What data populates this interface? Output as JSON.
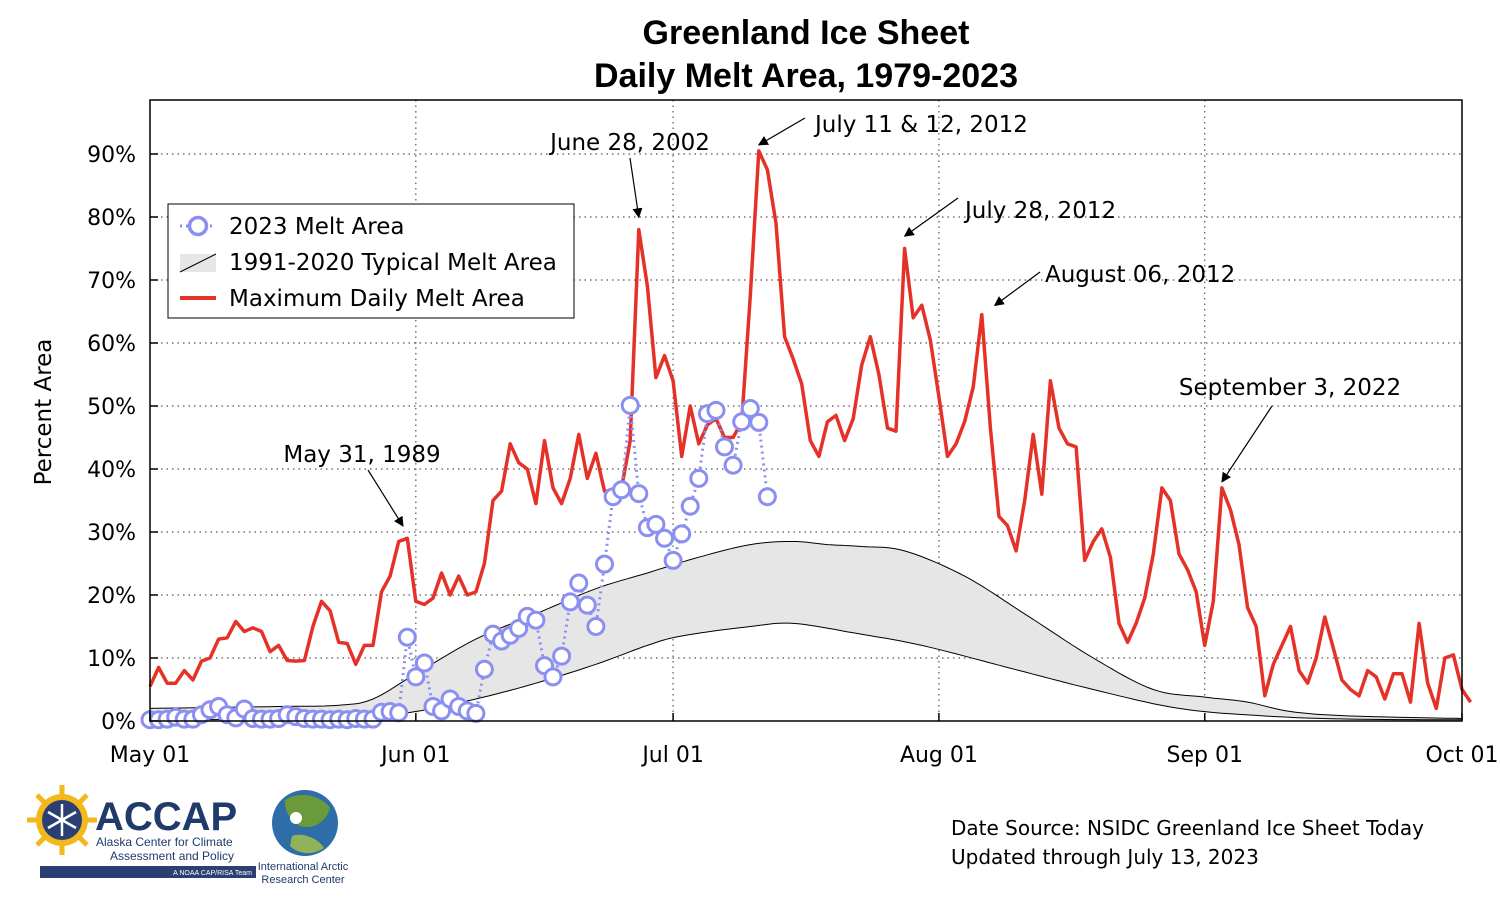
{
  "chart_data": {
    "type": "line",
    "title": [
      "Greenland Ice Sheet",
      "Daily Melt Area, 1979-2023"
    ],
    "ylabel": "Percent Area",
    "xlabel": "",
    "ylim": [
      0,
      100
    ],
    "yticks": [
      0,
      10,
      20,
      30,
      40,
      50,
      60,
      70,
      80,
      90
    ],
    "ytick_labels": [
      "0%",
      "10%",
      "20%",
      "30%",
      "40%",
      "50%",
      "60%",
      "70%",
      "80%",
      "90%"
    ],
    "x_start": "May 01",
    "x_end": "Oct 01",
    "xticks": [
      {
        "label": "May 01",
        "day": 0
      },
      {
        "label": "Jun 01",
        "day": 31
      },
      {
        "label": "Jul 01",
        "day": 61
      },
      {
        "label": "Aug 01",
        "day": 92
      },
      {
        "label": "Sep 01",
        "day": 123
      },
      {
        "label": "Oct 01",
        "day": 153
      }
    ],
    "grid": "dotted",
    "legend_position": "upper-left",
    "legend": [
      {
        "label": "2023 Melt Area",
        "color": "#8a8ff0",
        "style": "dotted line with open circles"
      },
      {
        "label": "1991-2020 Typical Melt Area",
        "color": "#e6e6e6",
        "style": "shaded band"
      },
      {
        "label": "Maximum Daily Melt Area",
        "color": "#e53228",
        "style": "solid line"
      }
    ],
    "series": [
      {
        "name": "Maximum Daily Melt Area",
        "color": "#e53228",
        "values": [
          5.5,
          8.5,
          6,
          6,
          8,
          6.5,
          9.5,
          10,
          13,
          13.2,
          15.8,
          14.2,
          14.8,
          14.2,
          11,
          12,
          9.6,
          9.5,
          9.6,
          15,
          19,
          17.5,
          12.5,
          12.3,
          9,
          12,
          12,
          20.5,
          23,
          28.5,
          29,
          19,
          18.5,
          19.5,
          23.5,
          20,
          23,
          20,
          20.5,
          25,
          35,
          36.5,
          44,
          41,
          40,
          34.5,
          44.5,
          37,
          34.5,
          38.5,
          45.5,
          38.5,
          42.5,
          36.5,
          36.5,
          37,
          44.5,
          78,
          69,
          54.5,
          58,
          54,
          42,
          50,
          44,
          47,
          48,
          45,
          45,
          47.5,
          67.5,
          90.5,
          87.5,
          79,
          61,
          57.5,
          53.5,
          44.5,
          42,
          47.5,
          48.5,
          44.5,
          48,
          56.5,
          61,
          55,
          46.5,
          46,
          75,
          64,
          66,
          60.5,
          51.5,
          42,
          44,
          47.5,
          53,
          64.5,
          46.5,
          32.5,
          31,
          27,
          35,
          45.5,
          36,
          54,
          46.5,
          44,
          43.5,
          25.5,
          28.5,
          30.5,
          26,
          15.5,
          12.5,
          15.5,
          19.5,
          26.5,
          37,
          35,
          26.5,
          24,
          20.5,
          12,
          19,
          37,
          33.5,
          28,
          18,
          15,
          4,
          9,
          12,
          15,
          8,
          6,
          10,
          16.5,
          11.5,
          6.5,
          5,
          4,
          8,
          7,
          3.5,
          7.5,
          7.5,
          3,
          15.5,
          6,
          2,
          10,
          10.5,
          5,
          3
        ]
      },
      {
        "name": "2023 Melt Area",
        "color": "#8a8ff0",
        "values": [
          0.2,
          0.2,
          0.3,
          0.6,
          0.3,
          0.3,
          1.0,
          1.8,
          2.3,
          1.0,
          0.5,
          1.9,
          0.4,
          0.3,
          0.3,
          0.4,
          1.0,
          0.7,
          0.4,
          0.3,
          0.3,
          0.2,
          0.3,
          0.2,
          0.4,
          0.3,
          0.3,
          1.4,
          1.5,
          1.3,
          13.3,
          7.0,
          9.2,
          2.3,
          1.6,
          3.5,
          2.3,
          1.6,
          1.2,
          8.2,
          13.8,
          12.7,
          13.6,
          14.7,
          16.6,
          16.0,
          8.8,
          7.0,
          10.3,
          18.9,
          21.9,
          18.4,
          15.0,
          24.9,
          35.6,
          36.7,
          50.1,
          36.1,
          30.7,
          31.2,
          29.0,
          25.5,
          29.7,
          34.1,
          38.5,
          48.8,
          49.3,
          43.5,
          40.6,
          47.5,
          49.6,
          47.4,
          35.6
        ]
      },
      {
        "name": "1991-2020 Typical Melt Area",
        "color": "#e6e6e6",
        "lower_knots": [
          [
            0,
            0.2
          ],
          [
            20,
            0.3
          ],
          [
            25,
            0.6
          ],
          [
            31,
            1.5
          ],
          [
            38,
            3.5
          ],
          [
            45,
            6
          ],
          [
            52,
            9
          ],
          [
            58,
            12
          ],
          [
            62,
            13.5
          ],
          [
            70,
            15
          ],
          [
            75,
            15.5
          ],
          [
            82,
            14
          ],
          [
            90,
            12
          ],
          [
            100,
            8.5
          ],
          [
            110,
            5
          ],
          [
            120,
            2
          ],
          [
            130,
            0.8
          ],
          [
            140,
            0.3
          ],
          [
            153,
            0.2
          ]
        ],
        "upper_knots": [
          [
            0,
            2
          ],
          [
            15,
            2.3
          ],
          [
            22,
            2.5
          ],
          [
            26,
            3.5
          ],
          [
            31,
            7.5
          ],
          [
            38,
            13
          ],
          [
            45,
            17
          ],
          [
            52,
            21
          ],
          [
            58,
            23.5
          ],
          [
            64,
            26
          ],
          [
            70,
            28
          ],
          [
            75,
            28.5
          ],
          [
            79,
            28
          ],
          [
            83,
            27.7
          ],
          [
            88,
            27
          ],
          [
            95,
            23
          ],
          [
            102,
            17
          ],
          [
            110,
            10
          ],
          [
            117,
            5
          ],
          [
            123,
            3.8
          ],
          [
            128,
            3
          ],
          [
            133,
            1.5
          ],
          [
            140,
            0.8
          ],
          [
            153,
            0.4
          ]
        ]
      }
    ],
    "annotations": [
      {
        "label": "May 31, 1989",
        "day": 29.5,
        "value": 30
      },
      {
        "label": "June 28, 2002",
        "day": 57,
        "value": 79
      },
      {
        "label": "July 11 & 12, 2012",
        "day": 71,
        "value": 90.5
      },
      {
        "label": "July 28, 2012",
        "day": 88,
        "value": 76
      },
      {
        "label": "August 06, 2012",
        "day": 98.5,
        "value": 65
      },
      {
        "label": "September 3, 2022",
        "day": 125,
        "value": 37
      }
    ]
  },
  "source": {
    "line1": "Date Source: NSIDC Greenland Ice Sheet Today",
    "line2": "Updated through July 13, 2023"
  },
  "logos": {
    "accap_name": "ACCAP",
    "accap_line1": "Alaska Center for Climate",
    "accap_line2": "Assessment and Policy",
    "accap_tag": "A NOAA CAP/RISA Team",
    "iarc_line1": "International Arctic",
    "iarc_line2": "Research Center"
  }
}
